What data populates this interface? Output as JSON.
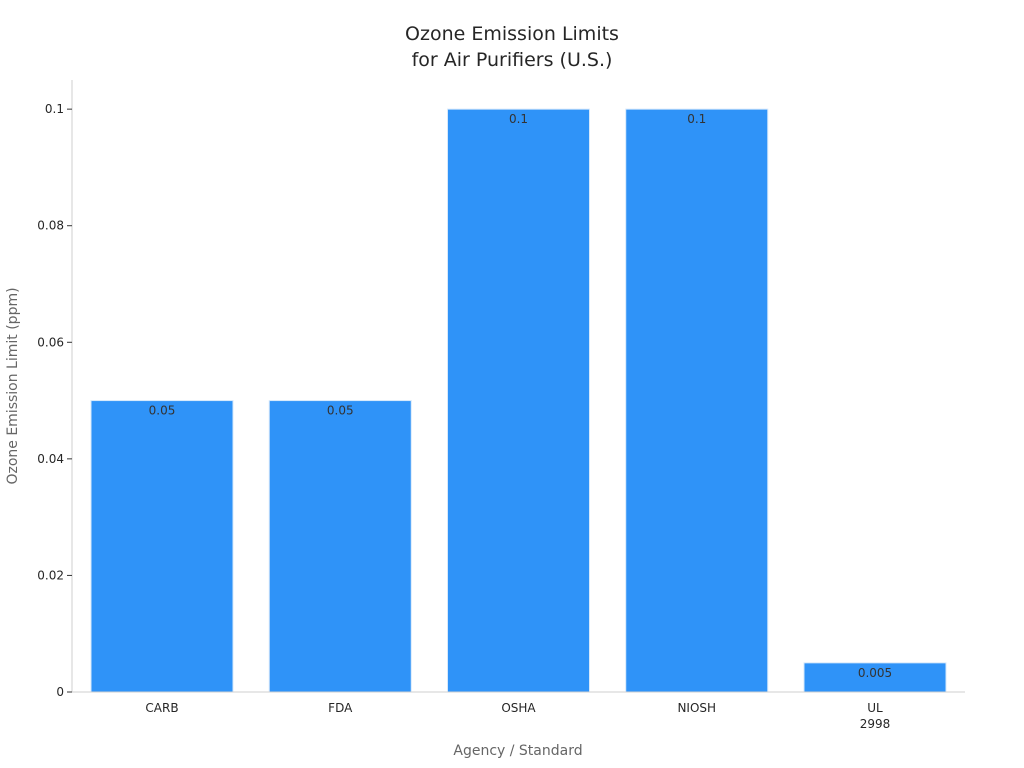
{
  "chart_data": {
    "type": "bar",
    "title": [
      "Ozone Emission Limits",
      "for Air Purifiers (U.S.)"
    ],
    "xlabel": "Agency / Standard",
    "ylabel": "Ozone Emission Limit (ppm)",
    "categories": [
      [
        "CARB"
      ],
      [
        "FDA"
      ],
      [
        "OSHA"
      ],
      [
        "NIOSH"
      ],
      [
        "UL",
        "2998"
      ]
    ],
    "values": [
      0.05,
      0.05,
      0.1,
      0.1,
      0.005
    ],
    "value_labels": [
      "0.05",
      "0.05",
      "0.1",
      "0.1",
      "0.005"
    ],
    "ylim": [
      0,
      0.105
    ],
    "yticks": [
      0,
      0.02,
      0.04,
      0.06,
      0.08,
      0.1
    ],
    "ytick_labels": [
      "0",
      "0.02",
      "0.04",
      "0.06",
      "0.08",
      "0.1"
    ],
    "grid": false,
    "legend": "none",
    "colors": {
      "bar": "#2f93f8",
      "bar_edge": "#d6e8fb"
    }
  }
}
